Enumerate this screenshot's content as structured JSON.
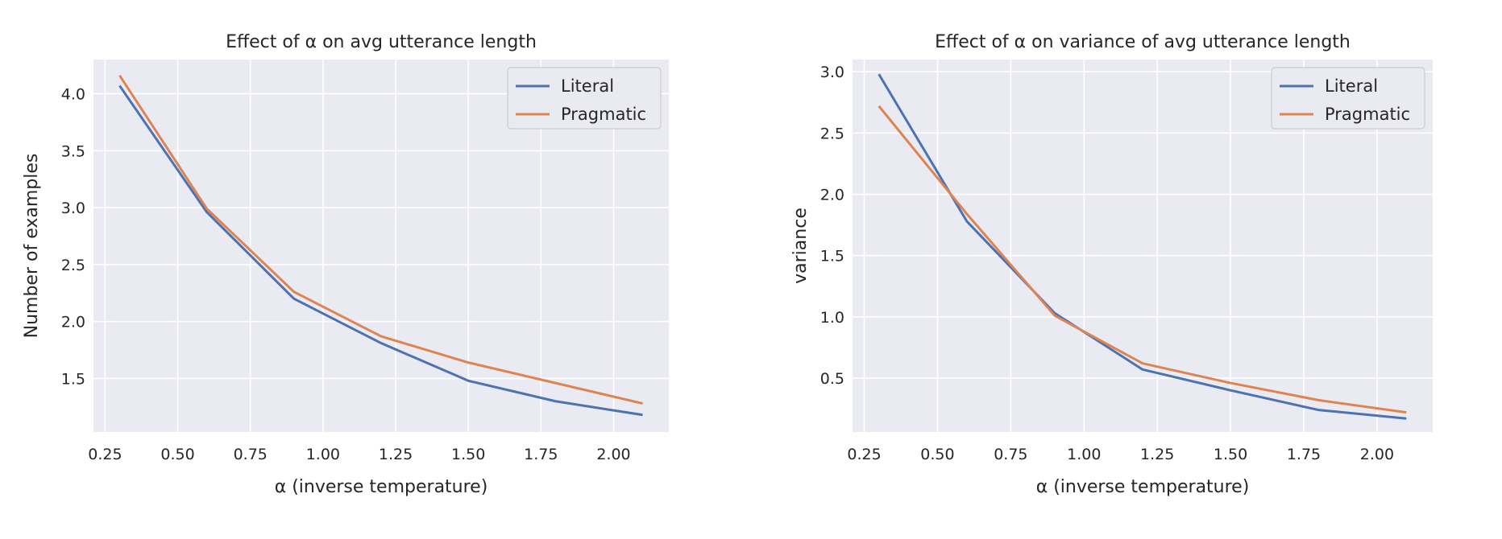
{
  "colors": {
    "background": "#eaeaf2",
    "grid": "#ffffff",
    "literal": "#4c72b0",
    "pragmatic": "#dd8452"
  },
  "chart_data": [
    {
      "type": "line",
      "title": "Effect of α on avg utterance length",
      "xlabel": "α (inverse temperature)",
      "ylabel": "Number of examples",
      "x": [
        0.3,
        0.6,
        0.9,
        1.2,
        1.5,
        1.8,
        2.1
      ],
      "xlim": [
        0.21,
        2.19
      ],
      "ylim": [
        1.03,
        4.3
      ],
      "xticks": [
        "0.25",
        "0.50",
        "0.75",
        "1.00",
        "1.25",
        "1.50",
        "1.75",
        "2.00"
      ],
      "yticks": [
        "1.5",
        "2.0",
        "2.5",
        "3.0",
        "3.5",
        "4.0"
      ],
      "grid": true,
      "legend": "top-right",
      "series": [
        {
          "name": "Literal",
          "values": [
            4.07,
            2.96,
            2.2,
            1.81,
            1.48,
            1.3,
            1.18
          ]
        },
        {
          "name": "Pragmatic",
          "values": [
            4.16,
            2.99,
            2.26,
            1.87,
            1.64,
            1.46,
            1.28
          ]
        }
      ]
    },
    {
      "type": "line",
      "title": "Effect of α on variance of avg utterance length",
      "xlabel": "α (inverse temperature)",
      "ylabel": "variance",
      "x": [
        0.3,
        0.6,
        0.9,
        1.2,
        1.5,
        1.8,
        2.1
      ],
      "xlim": [
        0.21,
        2.19
      ],
      "ylim": [
        0.06,
        3.1
      ],
      "xticks": [
        "0.25",
        "0.50",
        "0.75",
        "1.00",
        "1.25",
        "1.50",
        "1.75",
        "2.00"
      ],
      "yticks": [
        "0.5",
        "1.0",
        "1.5",
        "2.0",
        "2.5",
        "3.0"
      ],
      "grid": true,
      "legend": "top-right",
      "series": [
        {
          "name": "Literal",
          "values": [
            2.98,
            1.78,
            1.03,
            0.57,
            0.4,
            0.24,
            0.17
          ]
        },
        {
          "name": "Pragmatic",
          "values": [
            2.72,
            1.84,
            1.01,
            0.62,
            0.46,
            0.32,
            0.22
          ]
        }
      ]
    }
  ]
}
